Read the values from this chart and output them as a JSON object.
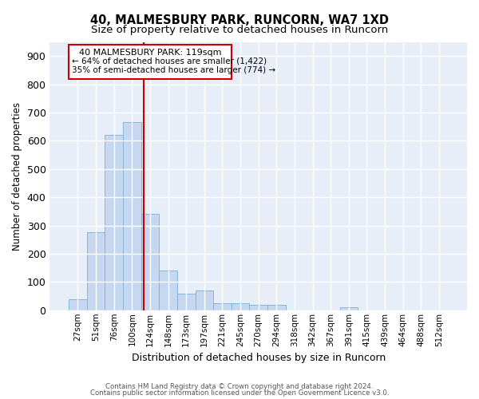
{
  "title1": "40, MALMESBURY PARK, RUNCORN, WA7 1XD",
  "title2": "Size of property relative to detached houses in Runcorn",
  "xlabel": "Distribution of detached houses by size in Runcorn",
  "ylabel": "Number of detached properties",
  "categories": [
    "27sqm",
    "51sqm",
    "76sqm",
    "100sqm",
    "124sqm",
    "148sqm",
    "173sqm",
    "197sqm",
    "221sqm",
    "245sqm",
    "270sqm",
    "294sqm",
    "318sqm",
    "342sqm",
    "367sqm",
    "391sqm",
    "415sqm",
    "439sqm",
    "464sqm",
    "488sqm",
    "512sqm"
  ],
  "values": [
    40,
    275,
    620,
    665,
    340,
    140,
    60,
    70,
    25,
    25,
    20,
    20,
    0,
    0,
    0,
    10,
    0,
    0,
    0,
    0,
    0
  ],
  "bar_color": "#c5d8f0",
  "bar_edgecolor": "#7aadd4",
  "property_line_label": "40 MALMESBURY PARK: 119sqm",
  "annotation_smaller": "← 64% of detached houses are smaller (1,422)",
  "annotation_larger": "35% of semi-detached houses are larger (774) →",
  "annotation_box_color": "#ffffff",
  "annotation_box_edgecolor": "#cc0000",
  "vline_color": "#cc0000",
  "ylim": [
    0,
    950
  ],
  "yticks": [
    0,
    100,
    200,
    300,
    400,
    500,
    600,
    700,
    800,
    900
  ],
  "bg_color": "#e8eef8",
  "footer1": "Contains HM Land Registry data © Crown copyright and database right 2024.",
  "footer2": "Contains public sector information licensed under the Open Government Licence v3.0."
}
